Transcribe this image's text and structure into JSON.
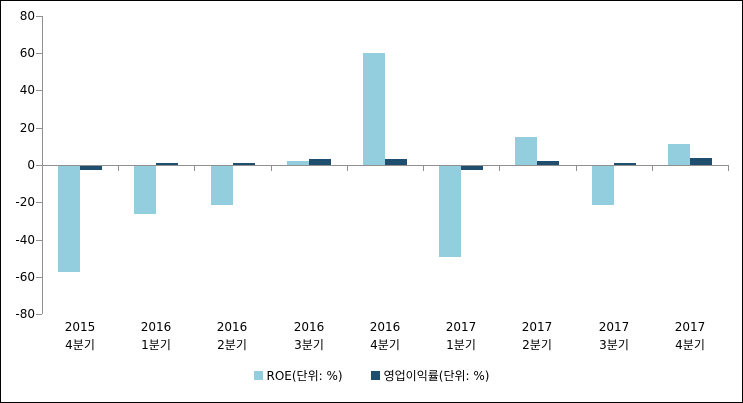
{
  "chart_data": {
    "type": "bar",
    "title": "",
    "xlabel": "",
    "ylabel": "",
    "categories": [
      {
        "year": "2015",
        "quarter": "4분기"
      },
      {
        "year": "2016",
        "quarter": "1분기"
      },
      {
        "year": "2016",
        "quarter": "2분기"
      },
      {
        "year": "2016",
        "quarter": "3분기"
      },
      {
        "year": "2016",
        "quarter": "4분기"
      },
      {
        "year": "2017",
        "quarter": "1분기"
      },
      {
        "year": "2017",
        "quarter": "2분기"
      },
      {
        "year": "2017",
        "quarter": "3분기"
      },
      {
        "year": "2017",
        "quarter": "4분기"
      }
    ],
    "series": [
      {
        "name": "ROE(단위: %)",
        "color": "#92CEDD",
        "values": [
          -57,
          -26,
          -21,
          2,
          60,
          -49,
          15,
          -21,
          11
        ]
      },
      {
        "name": "영업이익률(단위: %)",
        "color": "#1F4E6E",
        "values": [
          -2,
          1,
          1,
          3,
          3,
          -2,
          2,
          1,
          4
        ]
      }
    ],
    "ylim": [
      -80,
      80
    ],
    "yticks": [
      80,
      60,
      40,
      20,
      0,
      -20,
      -40,
      -60,
      -80
    ],
    "grid": false,
    "legend_position": "bottom",
    "axis_color": "#909090"
  }
}
